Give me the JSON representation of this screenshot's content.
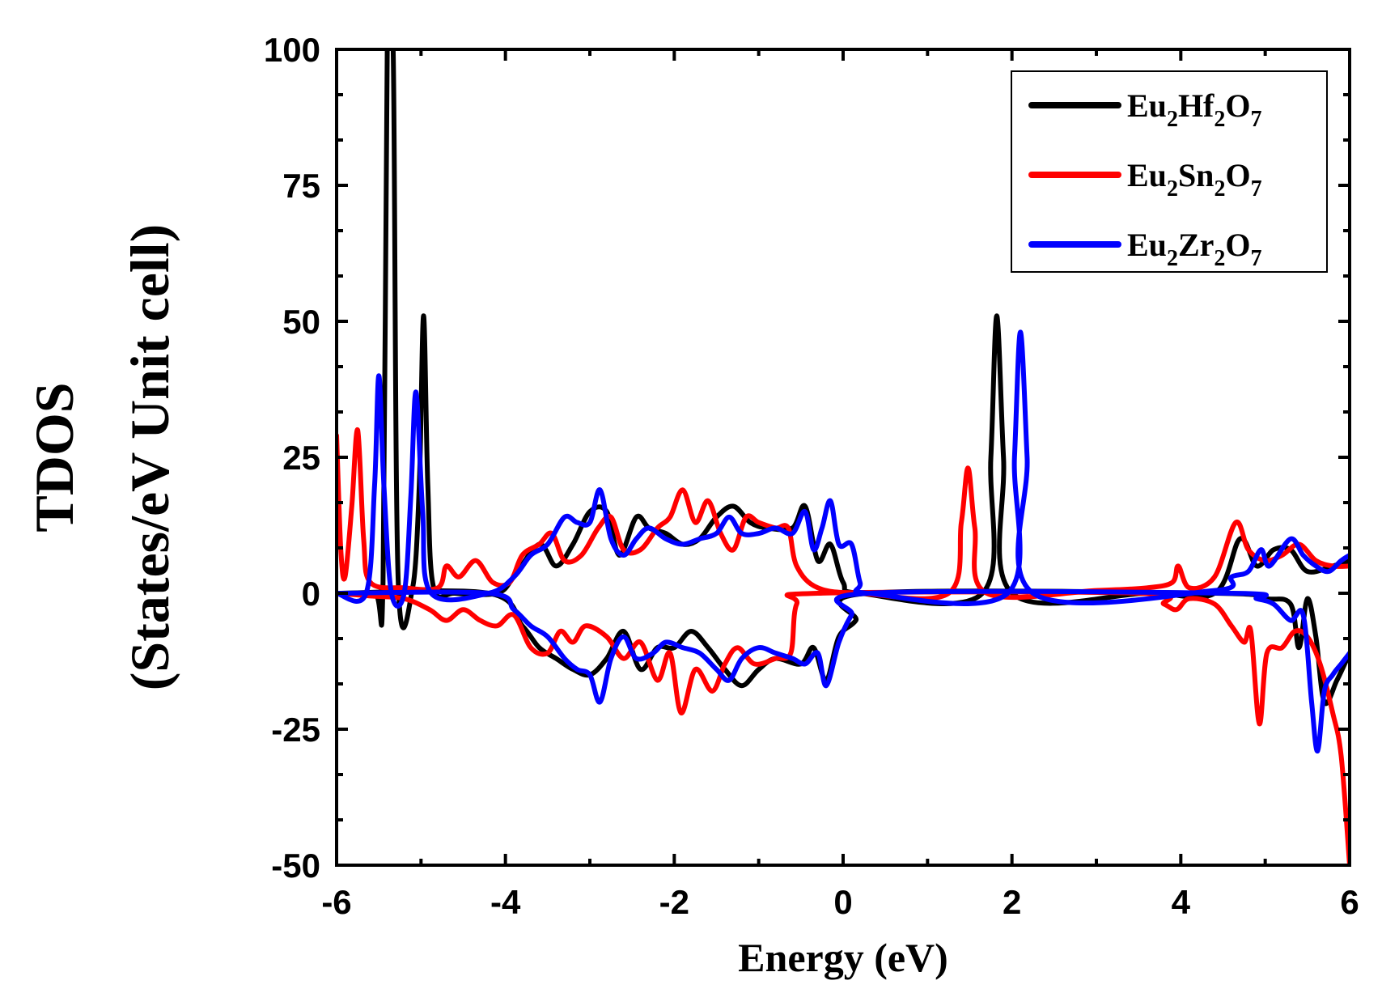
{
  "chart_data": {
    "type": "line",
    "title": "",
    "xlabel": "Energy (eV)",
    "ylabel_line1": "TDOS",
    "ylabel_line2": "(States/eV Unit cell)",
    "xlim": [
      -6,
      6
    ],
    "ylim": [
      -50,
      100
    ],
    "xticks": [
      -6,
      -4,
      -2,
      0,
      2,
      4,
      6
    ],
    "xtick_labels": [
      "-6",
      "-4",
      "-2",
      "0",
      "2",
      "4",
      "6"
    ],
    "yticks": [
      -50,
      -25,
      0,
      25,
      50,
      75,
      100
    ],
    "ytick_labels": [
      "-50",
      "-25",
      "0",
      "25",
      "50",
      "75",
      "100"
    ],
    "grid": false,
    "legend_position": "top-right",
    "series": [
      {
        "name": "Eu2Hf2O7",
        "label_parts": [
          "Eu",
          "2",
          "Hf",
          "2",
          "O",
          "7"
        ],
        "color": "#000000",
        "up": [
          [
            -6,
            0
          ],
          [
            -5.55,
            0
          ],
          [
            -5.45,
            2
          ],
          [
            -5.4,
            100
          ],
          [
            -5.33,
            100
          ],
          [
            -5.27,
            2
          ],
          [
            -5.1,
            1
          ],
          [
            -5.02,
            20
          ],
          [
            -4.97,
            51
          ],
          [
            -4.92,
            20
          ],
          [
            -4.85,
            1
          ],
          [
            -4.6,
            0
          ],
          [
            -4.1,
            0
          ],
          [
            -3.9,
            3
          ],
          [
            -3.6,
            9
          ],
          [
            -3.4,
            5
          ],
          [
            -3.2,
            9
          ],
          [
            -3.0,
            15
          ],
          [
            -2.8,
            15
          ],
          [
            -2.65,
            7
          ],
          [
            -2.45,
            14
          ],
          [
            -2.3,
            12
          ],
          [
            -2.1,
            11
          ],
          [
            -1.9,
            9
          ],
          [
            -1.7,
            10
          ],
          [
            -1.5,
            14
          ],
          [
            -1.3,
            16
          ],
          [
            -1.1,
            13
          ],
          [
            -0.9,
            12
          ],
          [
            -0.6,
            12
          ],
          [
            -0.45,
            16
          ],
          [
            -0.3,
            6
          ],
          [
            -0.15,
            9
          ],
          [
            0.0,
            2
          ],
          [
            0.2,
            0
          ],
          [
            1.65,
            0
          ],
          [
            1.75,
            25
          ],
          [
            1.82,
            51
          ],
          [
            1.9,
            25
          ],
          [
            2.0,
            0
          ],
          [
            3.6,
            0
          ],
          [
            4.4,
            0
          ],
          [
            4.7,
            10
          ],
          [
            4.9,
            5
          ],
          [
            5.1,
            8
          ],
          [
            5.3,
            8
          ],
          [
            5.5,
            4
          ],
          [
            5.8,
            5
          ],
          [
            6.0,
            6
          ]
        ],
        "down": [
          [
            -6,
            0
          ],
          [
            -4.2,
            0
          ],
          [
            -3.8,
            -6
          ],
          [
            -3.6,
            -10
          ],
          [
            -3.4,
            -12
          ],
          [
            -3.2,
            -14
          ],
          [
            -3.0,
            -15
          ],
          [
            -2.8,
            -12
          ],
          [
            -2.6,
            -7
          ],
          [
            -2.4,
            -14
          ],
          [
            -2.2,
            -10
          ],
          [
            -2.0,
            -10
          ],
          [
            -1.8,
            -7
          ],
          [
            -1.6,
            -10
          ],
          [
            -1.4,
            -14
          ],
          [
            -1.2,
            -17
          ],
          [
            -1.0,
            -14
          ],
          [
            -0.8,
            -12
          ],
          [
            -0.5,
            -13
          ],
          [
            -0.35,
            -10
          ],
          [
            -0.2,
            -16
          ],
          [
            -0.05,
            -8
          ],
          [
            0.15,
            -5
          ],
          [
            0.3,
            0
          ],
          [
            4.4,
            0
          ],
          [
            5.0,
            -1
          ],
          [
            5.3,
            -2
          ],
          [
            5.4,
            -10
          ],
          [
            5.5,
            -1
          ],
          [
            5.6,
            -8
          ],
          [
            5.7,
            -20
          ],
          [
            5.85,
            -16
          ],
          [
            6.0,
            -11
          ]
        ]
      },
      {
        "name": "Eu2Sn2O7",
        "label_parts": [
          "Eu",
          "2",
          "Sn",
          "2",
          "O",
          "7"
        ],
        "color": "#ff0000",
        "up": [
          [
            -6,
            29
          ],
          [
            -5.95,
            8
          ],
          [
            -5.9,
            3
          ],
          [
            -5.82,
            16
          ],
          [
            -5.75,
            30
          ],
          [
            -5.68,
            10
          ],
          [
            -5.6,
            2
          ],
          [
            -5.2,
            1
          ],
          [
            -4.8,
            1
          ],
          [
            -4.7,
            5
          ],
          [
            -4.55,
            3
          ],
          [
            -4.35,
            6
          ],
          [
            -4.15,
            2
          ],
          [
            -3.95,
            2
          ],
          [
            -3.8,
            7
          ],
          [
            -3.6,
            9
          ],
          [
            -3.45,
            11
          ],
          [
            -3.3,
            6
          ],
          [
            -3.1,
            7
          ],
          [
            -2.9,
            12
          ],
          [
            -2.75,
            14
          ],
          [
            -2.6,
            8
          ],
          [
            -2.4,
            8
          ],
          [
            -2.2,
            12
          ],
          [
            -2.05,
            14
          ],
          [
            -1.9,
            19
          ],
          [
            -1.75,
            13
          ],
          [
            -1.6,
            17
          ],
          [
            -1.45,
            11
          ],
          [
            -1.3,
            8
          ],
          [
            -1.15,
            14
          ],
          [
            -1.0,
            13
          ],
          [
            -0.8,
            12
          ],
          [
            -0.65,
            12
          ],
          [
            -0.55,
            5
          ],
          [
            -0.3,
            1
          ],
          [
            0.2,
            0
          ],
          [
            1.25,
            0
          ],
          [
            1.4,
            13
          ],
          [
            1.48,
            23
          ],
          [
            1.56,
            12
          ],
          [
            1.7,
            0
          ],
          [
            3.0,
            0.5
          ],
          [
            3.6,
            1
          ],
          [
            3.9,
            2
          ],
          [
            3.97,
            5
          ],
          [
            4.1,
            1
          ],
          [
            4.4,
            3
          ],
          [
            4.65,
            13
          ],
          [
            4.8,
            8
          ],
          [
            5.0,
            6
          ],
          [
            5.2,
            7
          ],
          [
            5.4,
            9
          ],
          [
            5.6,
            6
          ],
          [
            5.8,
            5
          ],
          [
            6.0,
            5
          ]
        ],
        "down": [
          [
            -6,
            0
          ],
          [
            -5.6,
            -0.5
          ],
          [
            -5.2,
            -1
          ],
          [
            -4.9,
            -3
          ],
          [
            -4.7,
            -5
          ],
          [
            -4.5,
            -3
          ],
          [
            -4.3,
            -5
          ],
          [
            -4.1,
            -6
          ],
          [
            -3.9,
            -4
          ],
          [
            -3.7,
            -10
          ],
          [
            -3.5,
            -11
          ],
          [
            -3.35,
            -7
          ],
          [
            -3.2,
            -9
          ],
          [
            -3.05,
            -6
          ],
          [
            -2.8,
            -8
          ],
          [
            -2.6,
            -12
          ],
          [
            -2.4,
            -9
          ],
          [
            -2.2,
            -16
          ],
          [
            -2.05,
            -11
          ],
          [
            -1.92,
            -22
          ],
          [
            -1.75,
            -14
          ],
          [
            -1.55,
            -18
          ],
          [
            -1.4,
            -13
          ],
          [
            -1.25,
            -10
          ],
          [
            -1.05,
            -13
          ],
          [
            -0.8,
            -12
          ],
          [
            -0.62,
            -11
          ],
          [
            -0.55,
            -2
          ],
          [
            -0.3,
            0
          ],
          [
            3.5,
            0
          ],
          [
            3.8,
            -2
          ],
          [
            3.95,
            -3
          ],
          [
            4.1,
            -1
          ],
          [
            4.4,
            -2
          ],
          [
            4.6,
            -6
          ],
          [
            4.75,
            -9
          ],
          [
            4.83,
            -7
          ],
          [
            4.93,
            -24
          ],
          [
            5.02,
            -11
          ],
          [
            5.2,
            -10
          ],
          [
            5.35,
            -7
          ],
          [
            5.5,
            -8
          ],
          [
            5.65,
            -13
          ],
          [
            5.8,
            -22
          ],
          [
            5.9,
            -30
          ],
          [
            6.0,
            -50
          ]
        ]
      },
      {
        "name": "Eu2Zr2O7",
        "label_parts": [
          "Eu",
          "2",
          "Zr",
          "2",
          "O",
          "7"
        ],
        "color": "#0000ff",
        "up": [
          [
            -6,
            0
          ],
          [
            -5.65,
            0
          ],
          [
            -5.55,
            20
          ],
          [
            -5.5,
            40
          ],
          [
            -5.44,
            20
          ],
          [
            -5.35,
            0
          ],
          [
            -5.2,
            0
          ],
          [
            -5.12,
            18
          ],
          [
            -5.06,
            37
          ],
          [
            -4.98,
            15
          ],
          [
            -4.88,
            0
          ],
          [
            -4.2,
            0
          ],
          [
            -3.9,
            3
          ],
          [
            -3.7,
            7
          ],
          [
            -3.5,
            9
          ],
          [
            -3.3,
            14
          ],
          [
            -3.15,
            13
          ],
          [
            -3.0,
            13
          ],
          [
            -2.88,
            19
          ],
          [
            -2.75,
            10
          ],
          [
            -2.6,
            7
          ],
          [
            -2.45,
            10
          ],
          [
            -2.3,
            12
          ],
          [
            -2.1,
            10
          ],
          [
            -1.9,
            9
          ],
          [
            -1.7,
            10
          ],
          [
            -1.5,
            11
          ],
          [
            -1.35,
            14
          ],
          [
            -1.2,
            11
          ],
          [
            -1.0,
            11
          ],
          [
            -0.8,
            12
          ],
          [
            -0.6,
            11
          ],
          [
            -0.45,
            15
          ],
          [
            -0.35,
            8
          ],
          [
            -0.25,
            12
          ],
          [
            -0.15,
            17
          ],
          [
            -0.05,
            9
          ],
          [
            0.1,
            9
          ],
          [
            0.2,
            2
          ],
          [
            0.3,
            0
          ],
          [
            1.95,
            0
          ],
          [
            2.03,
            25
          ],
          [
            2.1,
            48
          ],
          [
            2.18,
            25
          ],
          [
            2.25,
            0
          ],
          [
            4.4,
            0.5
          ],
          [
            4.6,
            3
          ],
          [
            4.8,
            4
          ],
          [
            4.95,
            8
          ],
          [
            5.05,
            5
          ],
          [
            5.3,
            10
          ],
          [
            5.45,
            7
          ],
          [
            5.6,
            5
          ],
          [
            5.75,
            4
          ],
          [
            5.9,
            6
          ],
          [
            6.0,
            7
          ]
        ],
        "down": [
          [
            -6,
            0
          ],
          [
            -4.2,
            0
          ],
          [
            -3.9,
            -3
          ],
          [
            -3.7,
            -6
          ],
          [
            -3.5,
            -8
          ],
          [
            -3.3,
            -12
          ],
          [
            -3.15,
            -14
          ],
          [
            -3.0,
            -15
          ],
          [
            -2.88,
            -20
          ],
          [
            -2.75,
            -12
          ],
          [
            -2.6,
            -8
          ],
          [
            -2.45,
            -12
          ],
          [
            -2.25,
            -11
          ],
          [
            -2.1,
            -9
          ],
          [
            -1.9,
            -10
          ],
          [
            -1.7,
            -11
          ],
          [
            -1.5,
            -14
          ],
          [
            -1.35,
            -16
          ],
          [
            -1.2,
            -12
          ],
          [
            -1.0,
            -10
          ],
          [
            -0.8,
            -11
          ],
          [
            -0.6,
            -12
          ],
          [
            -0.45,
            -13
          ],
          [
            -0.3,
            -11
          ],
          [
            -0.2,
            -17
          ],
          [
            -0.05,
            -9
          ],
          [
            0.1,
            -4
          ],
          [
            0.3,
            0
          ],
          [
            4.6,
            0
          ],
          [
            4.9,
            -1
          ],
          [
            5.1,
            -2
          ],
          [
            5.3,
            -5
          ],
          [
            5.45,
            -4
          ],
          [
            5.55,
            -20
          ],
          [
            5.62,
            -29
          ],
          [
            5.7,
            -18
          ],
          [
            5.8,
            -15
          ],
          [
            5.9,
            -13
          ],
          [
            6.0,
            -11
          ]
        ]
      }
    ]
  }
}
